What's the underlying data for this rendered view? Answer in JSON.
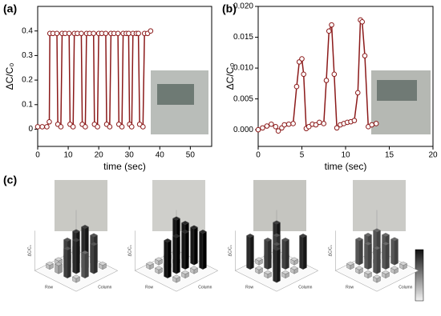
{
  "chart_data": [
    {
      "type": "line",
      "panel_label": "(a)",
      "x_label": "time (sec)",
      "y_label": "ΔC/C₀",
      "xlim": [
        0,
        57
      ],
      "ylim": [
        -0.07,
        0.5
      ],
      "xticks": [
        0,
        10,
        20,
        30,
        40,
        50
      ],
      "yticks": [
        0.0,
        0.1,
        0.2,
        0.3,
        0.4
      ],
      "yticks_labels_note_free": null,
      "color": "#8b1a1a",
      "x": [
        0,
        1.5,
        3,
        3.8,
        4,
        5,
        6.3,
        6.6,
        7.6,
        8,
        9,
        10.3,
        10.6,
        11.6,
        12,
        13,
        14.3,
        14.6,
        15.6,
        16,
        17,
        18.3,
        18.6,
        19.6,
        20,
        21,
        22.3,
        22.6,
        23.6,
        24,
        25,
        26.3,
        26.6,
        27.6,
        28,
        29,
        29.8,
        30.1,
        30.8,
        31.2,
        32.3,
        33,
        33.4,
        34.5,
        35,
        36,
        37
      ],
      "values": [
        0.01,
        0.01,
        0.01,
        0.03,
        0.39,
        0.39,
        0.39,
        0.02,
        0.01,
        0.39,
        0.39,
        0.39,
        0.02,
        0.01,
        0.39,
        0.39,
        0.39,
        0.02,
        0.01,
        0.39,
        0.39,
        0.39,
        0.02,
        0.01,
        0.39,
        0.39,
        0.39,
        0.02,
        0.01,
        0.39,
        0.39,
        0.39,
        0.02,
        0.01,
        0.39,
        0.39,
        0.39,
        0.02,
        0.01,
        0.39,
        0.39,
        0.39,
        0.02,
        0.01,
        0.39,
        0.39,
        0.4
      ]
    },
    {
      "type": "line",
      "panel_label": "(b)",
      "x_label": "time (sec)",
      "y_label": "ΔC/C₀",
      "xlim": [
        0,
        20
      ],
      "ylim": [
        -0.0027,
        0.02
      ],
      "xticks": [
        0,
        5,
        10,
        15,
        20
      ],
      "yticks": [
        {
          "value": 0,
          "label": "0.000"
        },
        {
          "value": 0.005,
          "label": "0.005"
        },
        {
          "value": 0.01,
          "label": "0.010"
        },
        {
          "value": 0.015,
          "label": "0.015"
        },
        {
          "value": 0.02,
          "label": "0.020"
        }
      ],
      "color": "#8b1a1a",
      "x": [
        0,
        0.5,
        1,
        1.5,
        2,
        2.3,
        2.7,
        3,
        3.5,
        4,
        4.4,
        4.7,
        5,
        5.2,
        5.5,
        5.8,
        6.2,
        6.6,
        7,
        7.5,
        7.8,
        8.1,
        8.4,
        8.7,
        9,
        9.4,
        9.8,
        10.2,
        10.6,
        11,
        11.4,
        11.7,
        11.9,
        12.2,
        12.6,
        13,
        13.5
      ],
      "values": [
        0,
        0.0003,
        0.0006,
        0.0009,
        0.0005,
        -0.0002,
        0.0003,
        0.0008,
        0.0009,
        0.001,
        0.007,
        0.011,
        0.0115,
        0.009,
        0.0002,
        0.0005,
        0.0009,
        0.0008,
        0.0012,
        0.001,
        0.008,
        0.016,
        0.017,
        0.009,
        0.0003,
        0.0008,
        0.001,
        0.0012,
        0.0013,
        0.0015,
        0.006,
        0.0178,
        0.0175,
        0.012,
        0.0005,
        0.0008,
        0.001
      ]
    },
    {
      "type": "bar3d",
      "panel_label": "(c)",
      "row_label": "Row",
      "col_label": "Column",
      "z_label": "ΔC/C₀",
      "zlim": [
        0,
        1
      ],
      "panels": [
        {
          "values": [
            [
              0.2,
              0.8,
              0.7,
              0.1
            ],
            [
              0.1,
              0.8,
              0.2,
              0.7
            ],
            [
              0.1,
              0.7,
              0.8,
              0.6
            ],
            [
              0.1,
              0.2,
              0.7,
              0.1
            ]
          ]
        },
        {
          "values": [
            [
              0.9,
              0.9,
              0.9,
              0.9
            ],
            [
              0.1,
              0.1,
              0.9,
              0.1
            ],
            [
              0.1,
              0.1,
              0.9,
              0.1
            ],
            [
              0.1,
              0.1,
              0.9,
              0.1
            ]
          ]
        },
        {
          "values": [
            [
              0.8,
              0.1,
              0.1,
              0.8
            ],
            [
              0.1,
              0.7,
              0.7,
              0.1
            ],
            [
              0.1,
              0.7,
              0.7,
              0.1
            ],
            [
              0.8,
              0.1,
              0.1,
              0.8
            ]
          ]
        },
        {
          "values": [
            [
              0.6,
              0.6,
              0.6,
              0.1
            ],
            [
              0.6,
              0.1,
              0.6,
              0.1
            ],
            [
              0.6,
              0.6,
              0.6,
              0.1
            ],
            [
              0.1,
              0.1,
              0.1,
              0.1
            ]
          ]
        }
      ]
    }
  ]
}
